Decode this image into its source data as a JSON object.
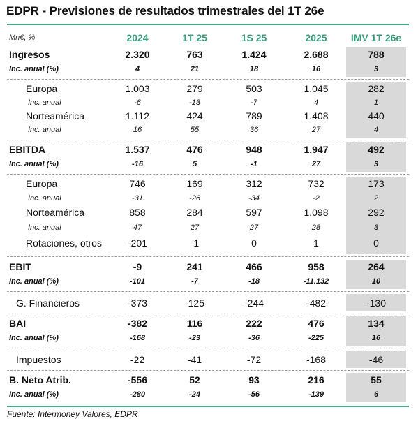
{
  "title": "EDPR - Previsiones de resultados trimestrales del 1T 26e",
  "header": {
    "unit": "Mn€, %",
    "columns": [
      "2024",
      "1T 25",
      "1S 25",
      "2025",
      "IMV 1T 26e"
    ]
  },
  "rows": [
    {
      "style": "main",
      "label": "Ingresos",
      "values": [
        "2.320",
        "763",
        "1.424",
        "2.688",
        "788"
      ]
    },
    {
      "style": "inc",
      "label": "Inc. anual (%)",
      "values": [
        "4",
        "21",
        "18",
        "16",
        "3"
      ]
    },
    {
      "style": "sub",
      "label": "Europa",
      "values": [
        "1.003",
        "279",
        "503",
        "1.045",
        "282"
      ]
    },
    {
      "style": "subinc",
      "label": "Inc. anual",
      "values": [
        "-6",
        "-13",
        "-7",
        "4",
        "1"
      ]
    },
    {
      "style": "sub",
      "label": "Norteamérica",
      "values": [
        "1.112",
        "424",
        "789",
        "1.408",
        "440"
      ]
    },
    {
      "style": "subinc",
      "label": "Inc. anual",
      "values": [
        "16",
        "55",
        "36",
        "27",
        "4"
      ]
    },
    {
      "style": "main",
      "label": "EBITDA",
      "values": [
        "1.537",
        "476",
        "948",
        "1.947",
        "492"
      ]
    },
    {
      "style": "inc",
      "label": "Inc. anual (%)",
      "values": [
        "-16",
        "5",
        "-1",
        "27",
        "3"
      ]
    },
    {
      "style": "sub",
      "label": "Europa",
      "values": [
        "746",
        "169",
        "312",
        "732",
        "173"
      ]
    },
    {
      "style": "subinc",
      "label": "Inc. anual",
      "values": [
        "-31",
        "-26",
        "-34",
        "-2",
        "2"
      ]
    },
    {
      "style": "sub",
      "label": "Norteamérica",
      "values": [
        "858",
        "284",
        "597",
        "1.098",
        "292"
      ]
    },
    {
      "style": "subinc",
      "label": "Inc. anual",
      "values": [
        "47",
        "27",
        "27",
        "28",
        "3"
      ]
    },
    {
      "style": "sub",
      "label": "Rotaciones, otros",
      "values": [
        "-201",
        "-1",
        "0",
        "1",
        "0"
      ]
    },
    {
      "style": "main",
      "label": "EBIT",
      "values": [
        "-9",
        "241",
        "466",
        "958",
        "264"
      ]
    },
    {
      "style": "inc",
      "label": "Inc. anual (%)",
      "values": [
        "-101",
        "-7",
        "-18",
        "-11.132",
        "10"
      ]
    },
    {
      "style": "plain",
      "label": "G. Financieros",
      "values": [
        "-373",
        "-125",
        "-244",
        "-482",
        "-130"
      ]
    },
    {
      "style": "main",
      "label": "BAI",
      "values": [
        "-382",
        "116",
        "222",
        "476",
        "134"
      ]
    },
    {
      "style": "inc",
      "label": "Inc. anual (%)",
      "values": [
        "-168",
        "-23",
        "-36",
        "-225",
        "16"
      ]
    },
    {
      "style": "plain",
      "label": "Impuestos",
      "values": [
        "-22",
        "-41",
        "-72",
        "-168",
        "-46"
      ]
    },
    {
      "style": "main",
      "label": "B. Neto Atrib.",
      "values": [
        "-556",
        "52",
        "93",
        "216",
        "55"
      ]
    },
    {
      "style": "inc",
      "label": "Inc. anual (%)",
      "values": [
        "-280",
        "-24",
        "-56",
        "-139",
        "6"
      ]
    }
  ],
  "footer": "Fuente: Intermoney Valores, EDPR"
}
